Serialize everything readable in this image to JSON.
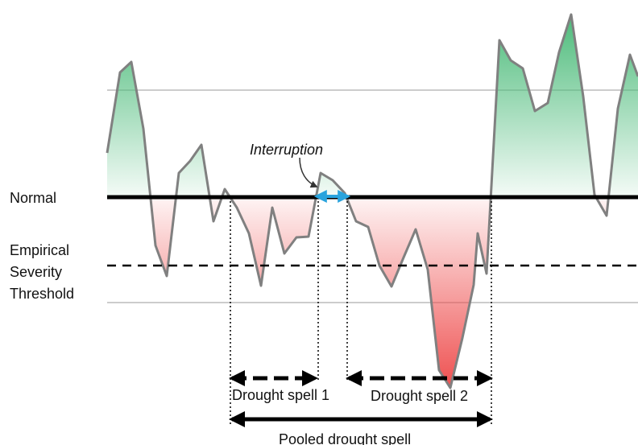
{
  "labels": {
    "normal": "Normal",
    "threshold_line1": "Empirical",
    "threshold_line2": "Severity",
    "threshold_line3": "Threshold",
    "interruption": "Interruption",
    "spell1": "Drought spell 1",
    "spell2": "Drought spell 2",
    "pooled": "Pooled drought spell"
  },
  "colors": {
    "series_line": "#808080",
    "surplus_fill": "#4cbb7a",
    "deficit_fill": "#ee4b4b",
    "normal_line": "#000000",
    "threshold_line": "#000000",
    "gridline": "#cccccc",
    "interruption_arrow": "#29a3dd"
  },
  "icons": {
    "interruption_pointer": "curved-arrow-icon",
    "interruption_span": "double-arrow-icon",
    "spell_span": "double-arrow-icon"
  }
}
